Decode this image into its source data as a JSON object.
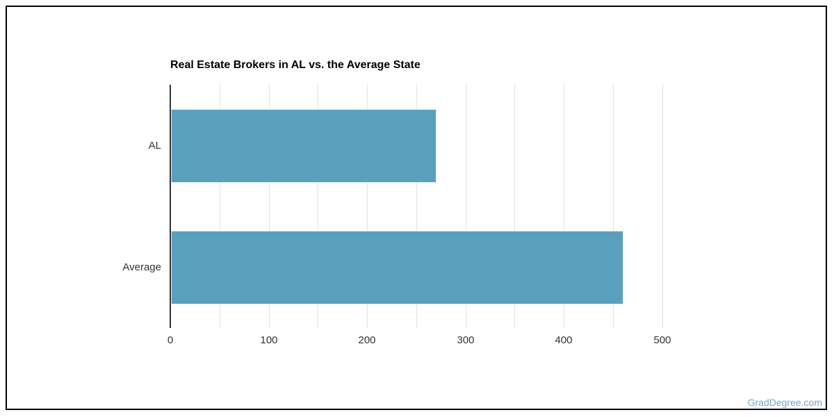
{
  "page": {
    "background": "#ffffff",
    "frame_border_color": "#000000"
  },
  "watermark": {
    "text": "GradDegree.com",
    "color": "#74a7c5"
  },
  "chart_data": {
    "type": "bar",
    "orientation": "horizontal",
    "title": "Real Estate Brokers in AL vs. the Average State",
    "categories": [
      "AL",
      "Average"
    ],
    "values": [
      270,
      460
    ],
    "xlabel": "",
    "ylabel": "",
    "xlim": [
      0,
      500
    ],
    "x_ticks": [
      0,
      100,
      200,
      300,
      400,
      500
    ],
    "minor_tick_step": 50,
    "grid": true,
    "legend": "none",
    "colors": {
      "bar": "#5aa0bc",
      "axis_line": "#333333",
      "gridline": "#e0e0e0",
      "tick_label": "#333333",
      "category_label": "#333333",
      "title": "#000000"
    }
  }
}
